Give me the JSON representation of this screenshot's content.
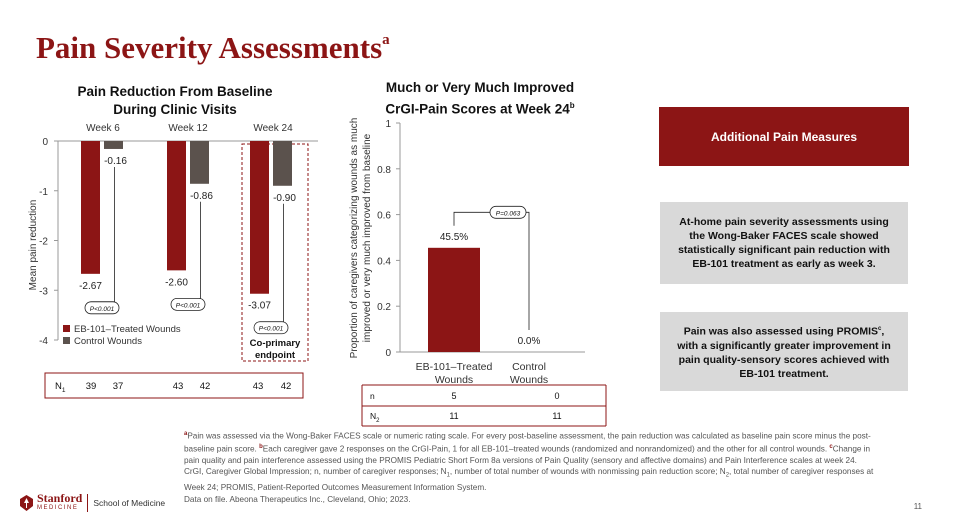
{
  "slide": {
    "title": "Pain Severity Assessments",
    "title_sup": "a",
    "page_number": "11"
  },
  "chart_data": [
    {
      "type": "bar",
      "title": "Pain Reduction From Baseline During Clinic Visits",
      "title_line1": "Pain Reduction From Baseline",
      "title_line2": "During Clinic Visits",
      "categories": [
        "Week 6",
        "Week 12",
        "Week 24"
      ],
      "series": [
        {
          "name": "EB-101–Treated Wounds",
          "color": "#8c1515",
          "values": [
            -2.67,
            -2.6,
            -3.07
          ],
          "labels": [
            "-2.67",
            "-2.60",
            "-3.07"
          ]
        },
        {
          "name": "Control Wounds",
          "color": "#5b524d",
          "values": [
            -0.16,
            -0.86,
            -0.9
          ],
          "labels": [
            "-0.16",
            "-0.86",
            "-0.90"
          ]
        }
      ],
      "p_values": [
        "P<0.001",
        "P<0.001",
        "P<0.001"
      ],
      "ylabel": "Mean pain reduction",
      "ylim": [
        -4,
        0
      ],
      "yticks": [
        "0",
        "-1",
        "-2",
        "-3",
        "-4"
      ],
      "highlight_label_line1": "Co-primary",
      "highlight_label_line2": "endpoint",
      "n_row": {
        "label": "N",
        "sub": "1",
        "values": [
          "39",
          "37",
          "43",
          "42",
          "43",
          "42"
        ]
      }
    },
    {
      "type": "bar",
      "title": "Much or Very Much Improved CrGI-Pain Scores at Week 24",
      "title_line1": "Much or Very Much Improved",
      "title_line2": "CrGI-Pain Scores at Week 24",
      "title_sup": "b",
      "categories": [
        "EB-101–Treated Wounds",
        "Control Wounds"
      ],
      "category_lines": [
        [
          "EB-101–Treated",
          "Wounds"
        ],
        [
          "Control",
          "Wounds"
        ]
      ],
      "values": [
        0.455,
        0.0
      ],
      "data_labels": [
        "45.5%",
        "0.0%"
      ],
      "p_value": "P=0.063",
      "ylabel_line1": "Proportion of caregivers categorizing wounds as much",
      "ylabel_line2": "improved or very much improved from baseline",
      "ylim": [
        0,
        1
      ],
      "yticks": [
        "0",
        "0.2",
        "0.4",
        "0.6",
        "0.8",
        "1"
      ],
      "color": "#8c1515",
      "table": {
        "rows": [
          {
            "label": "n",
            "sub": "",
            "values": [
              "5",
              "0"
            ]
          },
          {
            "label": "N",
            "sub": "2",
            "values": [
              "11",
              "11"
            ]
          }
        ]
      }
    }
  ],
  "side_panel": {
    "header": "Additional Pain Measures",
    "box1": "At-home pain severity assessments using the Wong-Baker FACES scale showed statistically significant pain reduction with EB-101 treatment as early as week 3.",
    "box2_part1": "Pain was also assessed using PROMIS",
    "box2_sup": "c",
    "box2_part2": ", with a significantly greater improvement in pain quality-sensory scores achieved with EB-101 treatment."
  },
  "footnotes": {
    "a_sup": "a",
    "a": "Pain was assessed via the Wong-Baker FACES scale or numeric rating scale. For every post-baseline assessment, the pain reduction was calculated as baseline pain score minus the post-baseline pain score.",
    "b_sup": "b",
    "b": "Each caregiver gave 2 responses on the CrGI-Pain, 1 for all EB-101–treated wounds (randomized and nonrandomized) and the other for all control wounds.",
    "c_sup": "c",
    "c": "Change in pain quality and pain interference assessed using the PROMIS Pediatric Short Form 8a versions of Pain Quality (sensory and affective domains) and Pain Interference scales at week 24.",
    "abbrev_part1": "CrGI, Caregiver Global Impression; n, number of caregiver responses; N",
    "abbrev_sub1": "1",
    "abbrev_part2": ", number of total number of wounds with nonmissing pain reduction score; N",
    "abbrev_sub2": "2",
    "abbrev_part3": ", total number of caregiver responses at Week 24; PROMIS, Patient-Reported Outcomes Measurement Information System.",
    "data": "Data on file. Abeona Therapeutics Inc., Cleveland, Ohio; 2023."
  },
  "logo": {
    "name": "Stanford",
    "sub": "MEDICINE",
    "school": "School of Medicine"
  }
}
